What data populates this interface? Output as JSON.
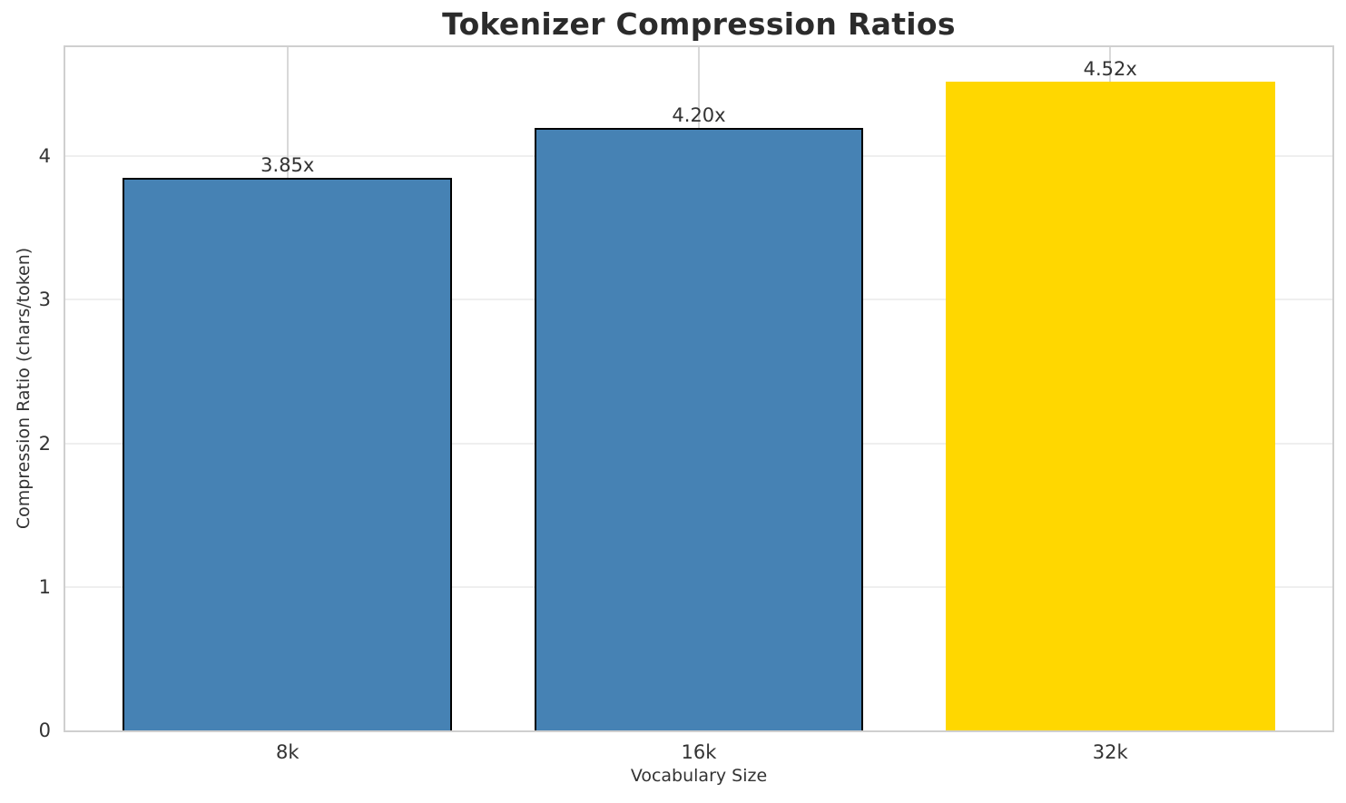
{
  "chart_data": {
    "type": "bar",
    "title": "Tokenizer Compression Ratios",
    "xlabel": "Vocabulary Size",
    "ylabel": "Compression Ratio (chars/token)",
    "categories": [
      "8k",
      "16k",
      "32k"
    ],
    "values": [
      3.85,
      4.2,
      4.52
    ],
    "bar_labels": [
      "3.85x",
      "4.20x",
      "4.52x"
    ],
    "bar_colors": [
      "#4682b4",
      "#4682b4",
      "#ffd700"
    ],
    "bar_edge_colors": [
      "#000000",
      "#000000",
      "none"
    ],
    "highlight_category": "32k",
    "yticks": [
      0,
      1,
      2,
      3,
      4
    ],
    "ylim": [
      0,
      4.76
    ],
    "xlim": [
      -0.54,
      2.54
    ],
    "bar_width_units": 0.8,
    "grid": true,
    "grid_horizontal": true,
    "grid_vertical": true,
    "legend_position": "none",
    "colors": {
      "bar_blue": "#4682b4",
      "bar_gold": "#ffd700",
      "bar_edge": "#000000",
      "title_text": "#2b2b2b",
      "tick_text": "#333333",
      "grid_horizontal": "#efefef",
      "grid_vertical": "#d9d9d9",
      "spine": "#cfcfcf",
      "background": "#ffffff"
    }
  }
}
